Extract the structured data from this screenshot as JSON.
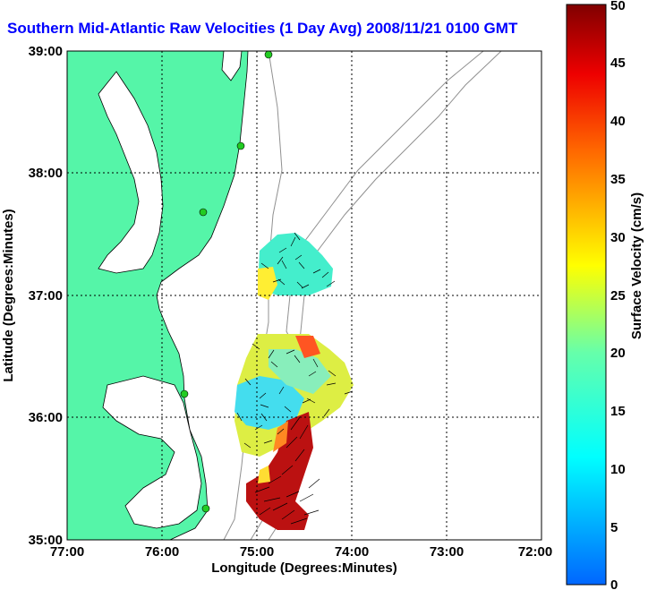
{
  "title": "Southern Mid-Atlantic Raw Velocities (1 Day Avg) 2008/11/21 0100 GMT",
  "map": {
    "xlabel": "Longitude (Degrees:Minutes)",
    "ylabel": "Latitude (Degrees:Minutes)",
    "x_ticks": [
      "77:00",
      "76:00",
      "75:00",
      "74:00",
      "73:00",
      "72:00"
    ],
    "y_ticks": [
      "39:00",
      "38:00",
      "37:00",
      "36:00",
      "35:00"
    ],
    "lon_range": [
      -77,
      -72
    ],
    "lat_range": [
      35,
      39
    ],
    "grid": true,
    "colors": {
      "land": "#55f5a8",
      "coast": "#000000",
      "bathymetry": "#909090",
      "station": "#22cc22"
    }
  },
  "colorbar": {
    "label": "Surface Velocity (cm/s)",
    "range": [
      0,
      50
    ],
    "ticks": [
      "0",
      "5",
      "10",
      "15",
      "20",
      "25",
      "30",
      "35",
      "40",
      "45",
      "50"
    ],
    "colormap": "jet"
  }
}
